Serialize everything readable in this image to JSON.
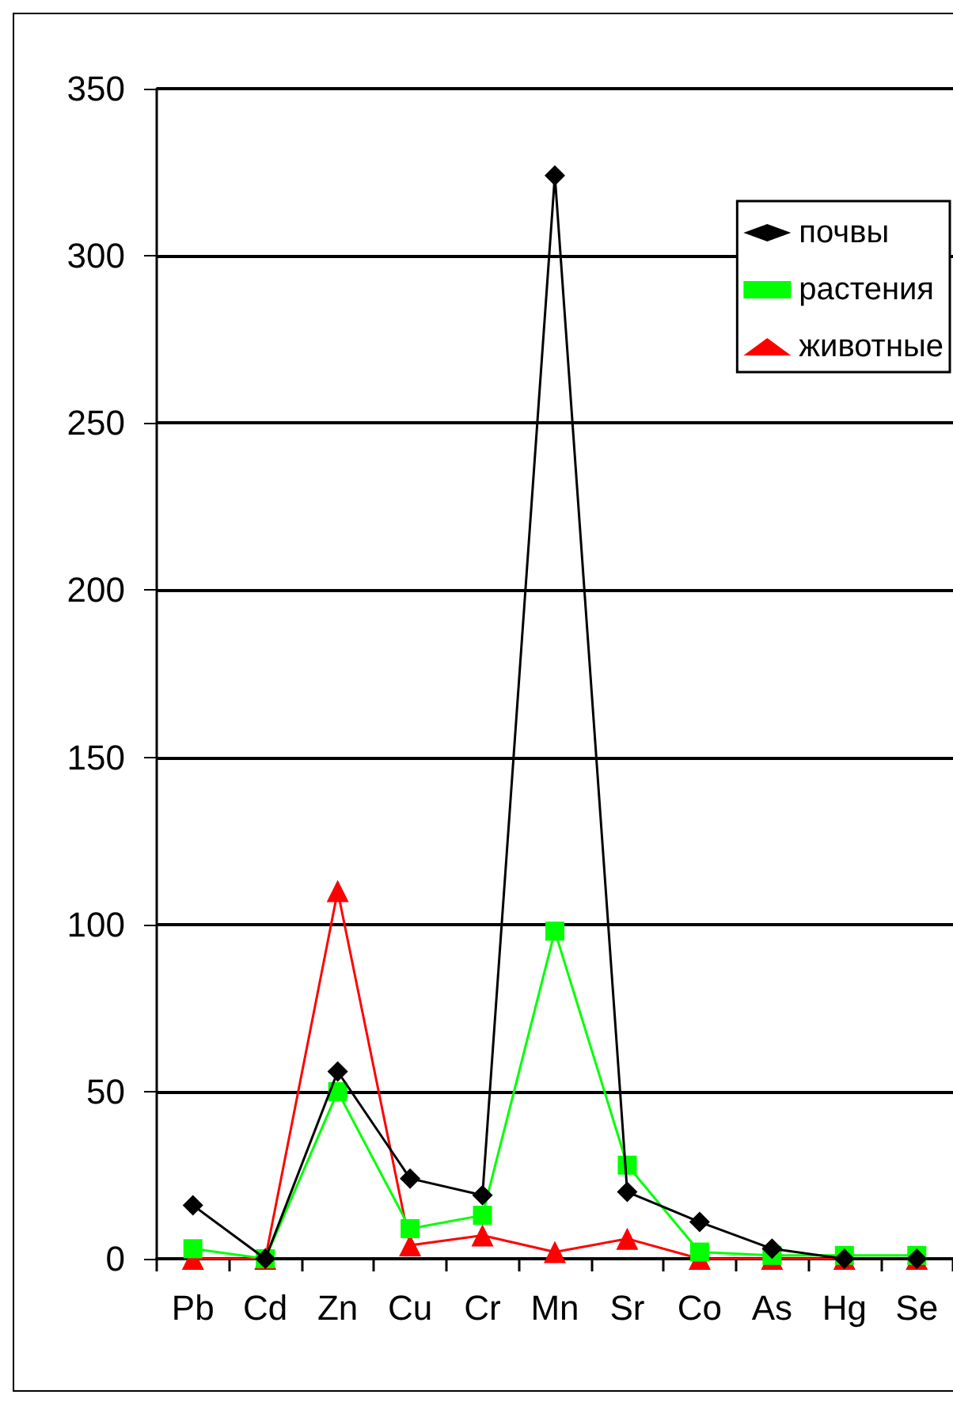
{
  "chart_data": {
    "type": "line",
    "categories": [
      "Pb",
      "Cd",
      "Zn",
      "Cu",
      "Cr",
      "Mn",
      "Sr",
      "Co",
      "As",
      "Hg",
      "Se"
    ],
    "series": [
      {
        "name": "почвы",
        "color": "#000000",
        "marker": "diamond",
        "values": [
          16,
          0,
          56,
          24,
          19,
          324,
          20,
          11,
          3,
          0,
          0
        ]
      },
      {
        "name": "растения",
        "color": "#00ff00",
        "marker": "square",
        "values": [
          3,
          0,
          50,
          9,
          13,
          98,
          28,
          2,
          1,
          1,
          1
        ]
      },
      {
        "name": "животные",
        "color": "#ff0000",
        "marker": "triangle",
        "values": [
          0,
          0,
          110,
          4,
          7,
          2,
          6,
          0,
          0,
          0,
          0
        ]
      }
    ],
    "ylim": [
      0,
      350
    ],
    "yticks": [
      0,
      50,
      100,
      150,
      200,
      250,
      300,
      350
    ],
    "grid": "y",
    "legend": "top right",
    "line_style": "solid"
  }
}
